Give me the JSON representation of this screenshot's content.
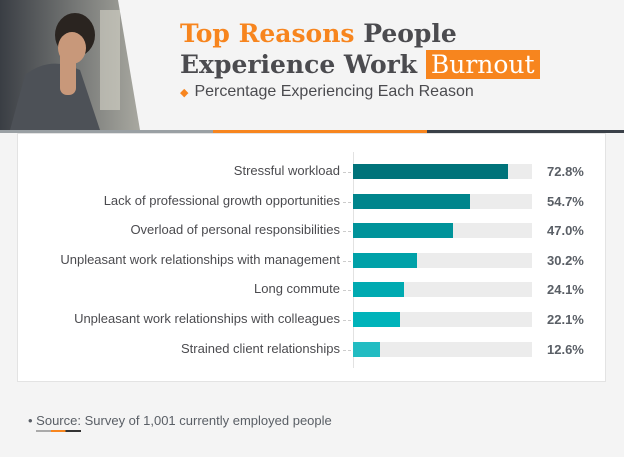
{
  "header": {
    "title_orange": "Top Reasons",
    "title_dark_1": "People",
    "title_dark_2": "Experience Work",
    "title_highlight": "Burnout",
    "subtitle": "Percentage Experiencing Each Reason"
  },
  "chart_data": {
    "type": "bar",
    "orientation": "horizontal",
    "categories": [
      "Stressful workload",
      "Lack of professional growth opportunities",
      "Overload of personal responsibilities",
      "Unpleasant work relationships with management",
      "Long commute",
      "Unpleasant work relationships with colleagues",
      "Strained client relationships"
    ],
    "values": [
      72.8,
      54.7,
      47.0,
      30.2,
      24.1,
      22.1,
      12.6
    ],
    "value_labels": [
      "72.8%",
      "54.7%",
      "47.0%",
      "30.2%",
      "24.1%",
      "22.1%",
      "12.6%"
    ],
    "unit": "%",
    "xlim": [
      0,
      84
    ],
    "grid": false,
    "colors": [
      "#00737a",
      "#00858c",
      "#00939a",
      "#00a1a8",
      "#00aab1",
      "#00b3ba",
      "#22bcc2"
    ],
    "track_color": "#ececec"
  },
  "footer": {
    "source_key": "Source:",
    "source_text": "Survey of 1,001 currently employed people"
  },
  "accent": "#f7851e"
}
